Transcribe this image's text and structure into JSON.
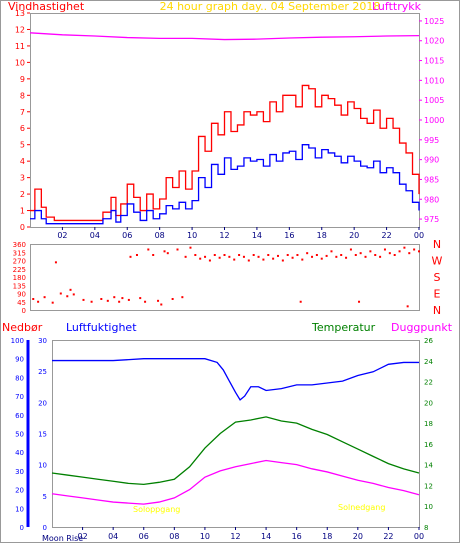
{
  "header": {
    "left_title": "Vindhastighet",
    "center_title": "24 hour graph day.. 04 September 2018",
    "right_title": "Lufttrykk"
  },
  "lower_header": {
    "rain_label": "Nedbør",
    "humidity_label": "Luftfuktighet",
    "temp_label": "Temperatur",
    "dew_label": "Duggpunkt"
  },
  "annotations": {
    "sunrise": "Soloppgang",
    "sunset": "Solnedgang",
    "moon": "Moon Rise"
  },
  "colors": {
    "wind": "#ff0000",
    "wind_avg": "#0000ff",
    "pressure": "#ff00ff",
    "direction": "#ff0000",
    "humidity": "#0000ff",
    "temperature": "#008000",
    "dewpoint": "#ff00ff",
    "rain": "#0000ff",
    "sun": "#ffff00",
    "title_center": "#ffd700"
  },
  "chart_data": [
    {
      "type": "line",
      "name": "wind_pressure",
      "x_tick_labels": [
        "02",
        "04",
        "06",
        "08",
        "10",
        "12",
        "14",
        "16",
        "18",
        "20",
        "22",
        "00"
      ],
      "x_hours": [
        2,
        4,
        6,
        8,
        10,
        12,
        14,
        16,
        18,
        20,
        22,
        24
      ],
      "left_ylim": [
        0,
        13
      ],
      "left_ticks": [
        "0",
        "1",
        "2",
        "3",
        "4",
        "5",
        "6",
        "7",
        "8",
        "9",
        "10",
        "11",
        "12",
        "13"
      ],
      "right_ylim": [
        973,
        1027
      ],
      "right_ticks": [
        "975",
        "980",
        "985",
        "990",
        "995",
        "1000",
        "1005",
        "1010",
        "1015",
        "1020",
        "1025"
      ],
      "series": [
        {
          "role": "gust",
          "x": [
            0,
            0.3,
            0.7,
            1,
            1.5,
            2,
            3,
            4,
            4.5,
            5,
            5.3,
            5.6,
            6,
            6.4,
            6.8,
            7.2,
            7.6,
            8,
            8.4,
            8.8,
            9.2,
            9.6,
            10,
            10.4,
            10.8,
            11.2,
            11.6,
            12,
            12.4,
            12.8,
            13.2,
            13.6,
            14,
            14.4,
            14.8,
            15.2,
            15.6,
            16,
            16.4,
            16.8,
            17.2,
            17.6,
            18,
            18.4,
            18.8,
            19.2,
            19.6,
            20,
            20.4,
            20.8,
            21.2,
            21.6,
            22,
            22.4,
            22.8,
            23.2,
            23.6,
            24
          ],
          "values": [
            1,
            2.3,
            1.2,
            0.6,
            0.4,
            0.4,
            0.4,
            0.4,
            0.9,
            1.8,
            0.7,
            1.4,
            2.6,
            1.8,
            1,
            2,
            1.1,
            1.7,
            3,
            2.4,
            3.4,
            2.3,
            3.4,
            5.5,
            4.6,
            6.3,
            5.6,
            7,
            5.8,
            6.2,
            7,
            6.8,
            7,
            6.4,
            7.6,
            7,
            8,
            8,
            7.3,
            8.6,
            8.4,
            7.3,
            8,
            7.8,
            7.4,
            6.8,
            7.6,
            7.2,
            6.6,
            6.3,
            7.1,
            6,
            6.6,
            6,
            5.1,
            4.5,
            3.2,
            2
          ]
        },
        {
          "role": "average",
          "x": [
            0,
            0.3,
            0.7,
            1,
            1.5,
            2,
            3,
            4,
            4.5,
            5,
            5.3,
            5.6,
            6,
            6.4,
            6.8,
            7.2,
            7.6,
            8,
            8.4,
            8.8,
            9.2,
            9.6,
            10,
            10.4,
            10.8,
            11.2,
            11.6,
            12,
            12.4,
            12.8,
            13.2,
            13.6,
            14,
            14.4,
            14.8,
            15.2,
            15.6,
            16,
            16.4,
            16.8,
            17.2,
            17.6,
            18,
            18.4,
            18.8,
            19.2,
            19.6,
            20,
            20.4,
            20.8,
            21.2,
            21.6,
            22,
            22.4,
            22.8,
            23.2,
            23.6,
            24
          ],
          "values": [
            0.5,
            1,
            0.5,
            0.2,
            0.2,
            0.2,
            0.2,
            0.2,
            0.5,
            1,
            0.3,
            0.7,
            1.4,
            0.9,
            0.4,
            1,
            0.5,
            0.8,
            1.3,
            1.1,
            1.5,
            1.1,
            1.6,
            3,
            2.4,
            3.8,
            3.2,
            4.2,
            3.5,
            3.7,
            4.2,
            4,
            4.1,
            3.7,
            4.4,
            4,
            4.5,
            4.6,
            4.1,
            5,
            4.8,
            4.2,
            4.7,
            4.5,
            4.3,
            3.9,
            4.3,
            4,
            3.7,
            3.6,
            4,
            3.3,
            3.6,
            3.3,
            2.6,
            2.2,
            1.5,
            1
          ]
        },
        {
          "role": "pressure",
          "x": [
            0,
            2,
            4,
            6,
            8,
            10,
            12,
            14,
            16,
            18,
            20,
            22,
            24
          ],
          "values": [
            1022,
            1021.5,
            1021.2,
            1020.8,
            1020.6,
            1020.6,
            1020.3,
            1020.4,
            1020.7,
            1020.9,
            1021,
            1021.2,
            1021.3
          ]
        }
      ]
    },
    {
      "type": "scatter",
      "name": "wind_direction",
      "ylim": [
        0,
        360
      ],
      "left_ticks": [
        "0",
        "45",
        "90",
        "135",
        "180",
        "225",
        "270",
        "315",
        "360"
      ],
      "right_ticks": [
        "N",
        "E",
        "S",
        "W",
        "N"
      ],
      "points": [
        [
          0.2,
          60
        ],
        [
          0.5,
          45
        ],
        [
          0.9,
          70
        ],
        [
          1.4,
          40
        ],
        [
          1.6,
          260
        ],
        [
          1.9,
          90
        ],
        [
          2.3,
          75
        ],
        [
          2.5,
          110
        ],
        [
          2.7,
          85
        ],
        [
          3.3,
          55
        ],
        [
          3.8,
          45
        ],
        [
          4.4,
          60
        ],
        [
          4.8,
          50
        ],
        [
          5.2,
          70
        ],
        [
          5.5,
          45
        ],
        [
          5.7,
          65
        ],
        [
          6.1,
          55
        ],
        [
          6.2,
          290
        ],
        [
          6.6,
          300
        ],
        [
          6.8,
          65
        ],
        [
          7.1,
          45
        ],
        [
          7.3,
          330
        ],
        [
          7.6,
          300
        ],
        [
          7.9,
          50
        ],
        [
          8.1,
          30
        ],
        [
          8.3,
          320
        ],
        [
          8.5,
          310
        ],
        [
          8.8,
          60
        ],
        [
          9.1,
          330
        ],
        [
          9.4,
          70
        ],
        [
          9.6,
          290
        ],
        [
          9.9,
          340
        ],
        [
          10.2,
          300
        ],
        [
          10.5,
          280
        ],
        [
          10.8,
          290
        ],
        [
          11.1,
          270
        ],
        [
          11.4,
          300
        ],
        [
          11.7,
          285
        ],
        [
          12,
          300
        ],
        [
          12.3,
          290
        ],
        [
          12.6,
          275
        ],
        [
          12.9,
          300
        ],
        [
          13.2,
          290
        ],
        [
          13.5,
          270
        ],
        [
          13.8,
          300
        ],
        [
          14.1,
          290
        ],
        [
          14.4,
          275
        ],
        [
          14.7,
          300
        ],
        [
          15,
          280
        ],
        [
          15.3,
          295
        ],
        [
          15.6,
          270
        ],
        [
          15.9,
          300
        ],
        [
          16.2,
          285
        ],
        [
          16.5,
          300
        ],
        [
          16.8,
          275
        ],
        [
          17.1,
          310
        ],
        [
          17.4,
          290
        ],
        [
          17.7,
          300
        ],
        [
          18,
          280
        ],
        [
          18.3,
          295
        ],
        [
          18.6,
          320
        ],
        [
          18.9,
          290
        ],
        [
          19.2,
          300
        ],
        [
          19.5,
          285
        ],
        [
          19.8,
          330
        ],
        [
          20.1,
          300
        ],
        [
          20.4,
          310
        ],
        [
          20.7,
          290
        ],
        [
          21,
          320
        ],
        [
          21.3,
          300
        ],
        [
          21.6,
          290
        ],
        [
          21.9,
          330
        ],
        [
          22.2,
          310
        ],
        [
          22.5,
          300
        ],
        [
          22.8,
          320
        ],
        [
          23.1,
          340
        ],
        [
          23.4,
          310
        ],
        [
          23.7,
          330
        ],
        [
          24,
          320
        ],
        [
          16.7,
          45
        ],
        [
          20.3,
          45
        ],
        [
          23.3,
          20
        ]
      ]
    },
    {
      "type": "line",
      "name": "humidity_temp",
      "left_ylim": [
        0,
        100
      ],
      "left_ticks": [
        "0",
        "10",
        "20",
        "30",
        "40",
        "50",
        "60",
        "70",
        "80",
        "90",
        "100"
      ],
      "rain_ylim": [
        0,
        30
      ],
      "rain_ticks": [
        "0",
        "5",
        "10",
        "15",
        "20",
        "25",
        "30"
      ],
      "right_ylim": [
        8,
        26
      ],
      "right_ticks": [
        "8",
        "10",
        "12",
        "14",
        "16",
        "18",
        "20",
        "22",
        "24",
        "26"
      ],
      "series": [
        {
          "role": "humidity",
          "x": [
            0,
            2,
            4,
            6,
            8,
            10,
            10.8,
            11.2,
            11.6,
            12,
            12.3,
            12.6,
            13,
            13.5,
            14,
            15,
            16,
            17,
            18,
            19,
            20,
            21,
            22,
            23,
            24
          ],
          "values": [
            89,
            89,
            89,
            90,
            90,
            90,
            88,
            84,
            78,
            72,
            68,
            70,
            75,
            75,
            73,
            74,
            76,
            76,
            77,
            78,
            81,
            83,
            87,
            88,
            88
          ]
        },
        {
          "role": "temperature",
          "x": [
            0,
            1,
            2,
            3,
            4,
            5,
            6,
            7,
            8,
            9,
            10,
            11,
            12,
            13,
            14,
            15,
            16,
            17,
            18,
            19,
            20,
            21,
            22,
            23,
            24
          ],
          "values": [
            13.2,
            13,
            12.8,
            12.6,
            12.4,
            12.2,
            12.1,
            12.3,
            12.6,
            13.8,
            15.6,
            17,
            18.1,
            18.3,
            18.6,
            18.2,
            18,
            17.4,
            16.9,
            16.2,
            15.5,
            14.8,
            14.1,
            13.6,
            13.2
          ]
        },
        {
          "role": "dewpoint",
          "x": [
            0,
            1,
            2,
            3,
            4,
            5,
            6,
            7,
            8,
            9,
            10,
            11,
            12,
            13,
            14,
            15,
            16,
            17,
            18,
            19,
            20,
            21,
            22,
            23,
            24
          ],
          "values": [
            11.2,
            11,
            10.8,
            10.6,
            10.4,
            10.3,
            10.2,
            10.4,
            10.8,
            11.6,
            12.8,
            13.4,
            13.8,
            14.1,
            14.4,
            14.2,
            14,
            13.6,
            13.3,
            12.9,
            12.5,
            12.2,
            11.8,
            11.5,
            11.1
          ]
        }
      ]
    }
  ]
}
